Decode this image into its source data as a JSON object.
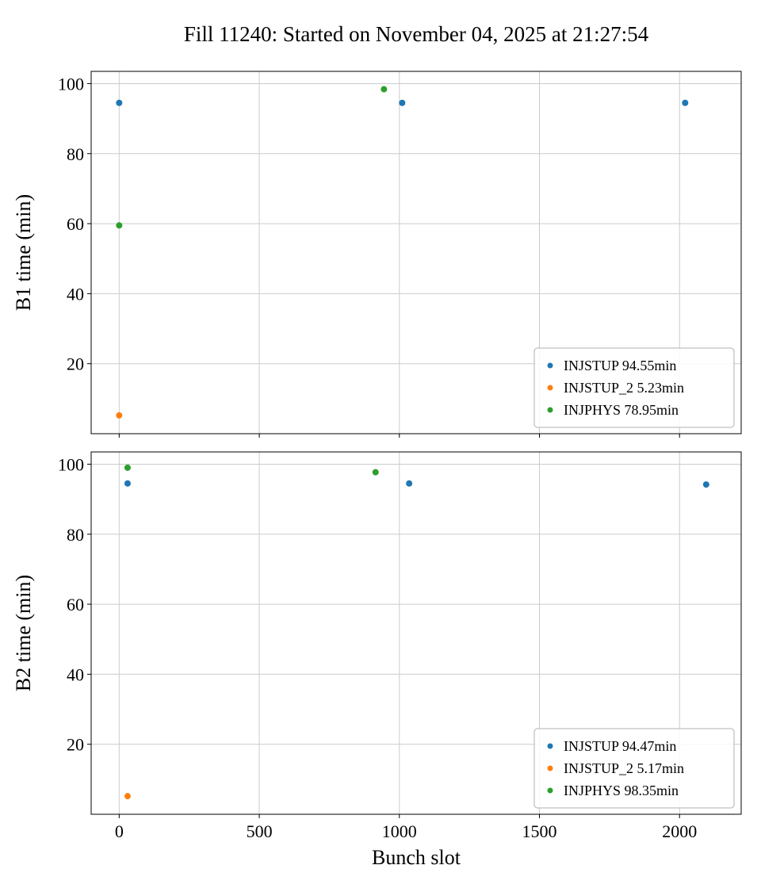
{
  "title": "Fill 11240: Started on November 04, 2025 at 21:27:54",
  "colors": {
    "blue": "#1f77b4",
    "orange": "#ff7f0e",
    "green": "#2ca02c",
    "grid": "#cccccc",
    "legend_border": "#b0b0b0"
  },
  "chart_data": [
    {
      "type": "scatter",
      "title": "",
      "xlabel": "",
      "ylabel": "B1 time (min)",
      "xlim": [
        -100,
        2220
      ],
      "ylim": [
        0,
        103.5
      ],
      "xticks": [
        0,
        500,
        1000,
        1500,
        2000
      ],
      "yticks": [
        20,
        40,
        60,
        80,
        100
      ],
      "grid": true,
      "legend_position": "lower right",
      "show_x_tick_labels": false,
      "series": [
        {
          "name": "INJSTUP 94.55min",
          "color": "#1f77b4",
          "points": [
            [
              0,
              94.5
            ],
            [
              1010,
              94.5
            ],
            [
              2020,
              94.5
            ]
          ]
        },
        {
          "name": "INJSTUP_2 5.23min",
          "color": "#ff7f0e",
          "points": [
            [
              0,
              5.23
            ]
          ]
        },
        {
          "name": "INJPHYS 78.95min",
          "color": "#2ca02c",
          "points": [
            [
              0,
              59.5
            ],
            [
              945,
              98.4
            ]
          ]
        }
      ]
    },
    {
      "type": "scatter",
      "title": "",
      "xlabel": "Bunch slot",
      "ylabel": "B2 time (min)",
      "xlim": [
        -100,
        2220
      ],
      "ylim": [
        0,
        103.5
      ],
      "xticks": [
        0,
        500,
        1000,
        1500,
        2000
      ],
      "yticks": [
        20,
        40,
        60,
        80,
        100
      ],
      "grid": true,
      "legend_position": "lower right",
      "show_x_tick_labels": true,
      "series": [
        {
          "name": "INJSTUP 94.47min",
          "color": "#1f77b4",
          "points": [
            [
              30,
              94.5
            ],
            [
              1035,
              94.5
            ],
            [
              2095,
              94.2
            ]
          ]
        },
        {
          "name": "INJSTUP_2 5.17min",
          "color": "#ff7f0e",
          "points": [
            [
              30,
              5.17
            ]
          ]
        },
        {
          "name": "INJPHYS 98.35min",
          "color": "#2ca02c",
          "points": [
            [
              30,
              99.0
            ],
            [
              915,
              97.7
            ]
          ]
        }
      ]
    }
  ]
}
